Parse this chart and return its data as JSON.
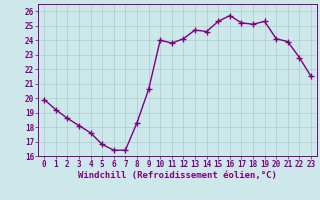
{
  "x": [
    0,
    1,
    2,
    3,
    4,
    5,
    6,
    7,
    8,
    9,
    10,
    11,
    12,
    13,
    14,
    15,
    16,
    17,
    18,
    19,
    20,
    21,
    22,
    23
  ],
  "y": [
    19.9,
    19.2,
    18.6,
    18.1,
    17.6,
    16.8,
    16.4,
    16.4,
    18.3,
    20.6,
    24.0,
    23.8,
    24.1,
    24.7,
    24.6,
    25.3,
    25.7,
    25.2,
    25.1,
    25.3,
    24.1,
    23.9,
    22.8,
    21.5
  ],
  "line_color": "#800080",
  "marker": "+",
  "marker_size": 4,
  "bg_color": "#cce8ea",
  "grid_color": "#aacccc",
  "xlabel": "Windchill (Refroidissement éolien,°C)",
  "xlim": [
    -0.5,
    23.5
  ],
  "ylim": [
    16,
    26.5
  ],
  "yticks": [
    16,
    17,
    18,
    19,
    20,
    21,
    22,
    23,
    24,
    25,
    26
  ],
  "xticks": [
    0,
    1,
    2,
    3,
    4,
    5,
    6,
    7,
    8,
    9,
    10,
    11,
    12,
    13,
    14,
    15,
    16,
    17,
    18,
    19,
    20,
    21,
    22,
    23
  ],
  "tick_color": "#800080",
  "tick_size": 5.5,
  "xlabel_size": 6.5,
  "line_width": 1.0
}
